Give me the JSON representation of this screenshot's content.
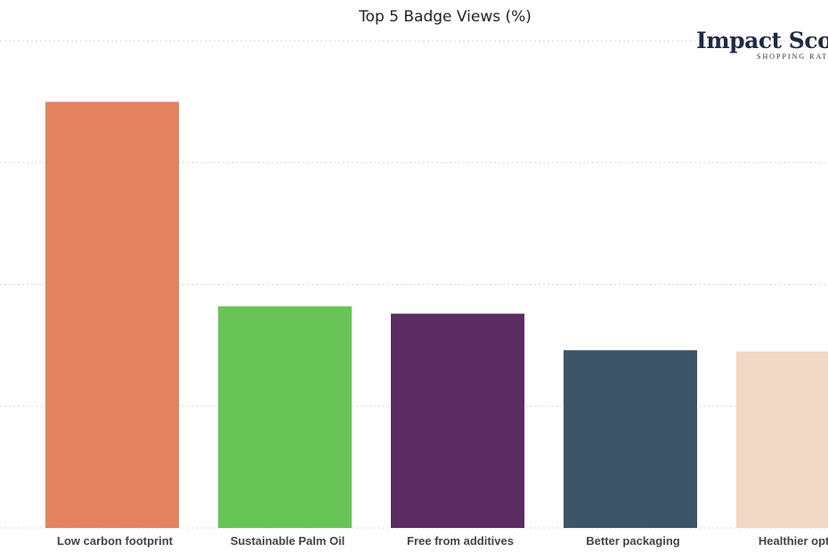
{
  "chart_data": {
    "type": "bar",
    "title": "Top 5 Badge Views (%)",
    "xlabel": "",
    "ylabel": "",
    "categories": [
      "Low carbon footprint",
      "Sustainable Palm Oil",
      "Free from additives",
      "Better packaging",
      "Healthier options"
    ],
    "values": [
      35,
      18.2,
      17.6,
      14.6,
      14.5
    ],
    "colors": [
      "#e38361",
      "#68c457",
      "#5b2d62",
      "#3e5469",
      "#f0d8c4"
    ],
    "ylim": [
      0,
      40
    ],
    "grid": true,
    "legend": "none"
  },
  "logo": {
    "name": "Impact Score",
    "tagline": "SHOPPING RATING"
  }
}
